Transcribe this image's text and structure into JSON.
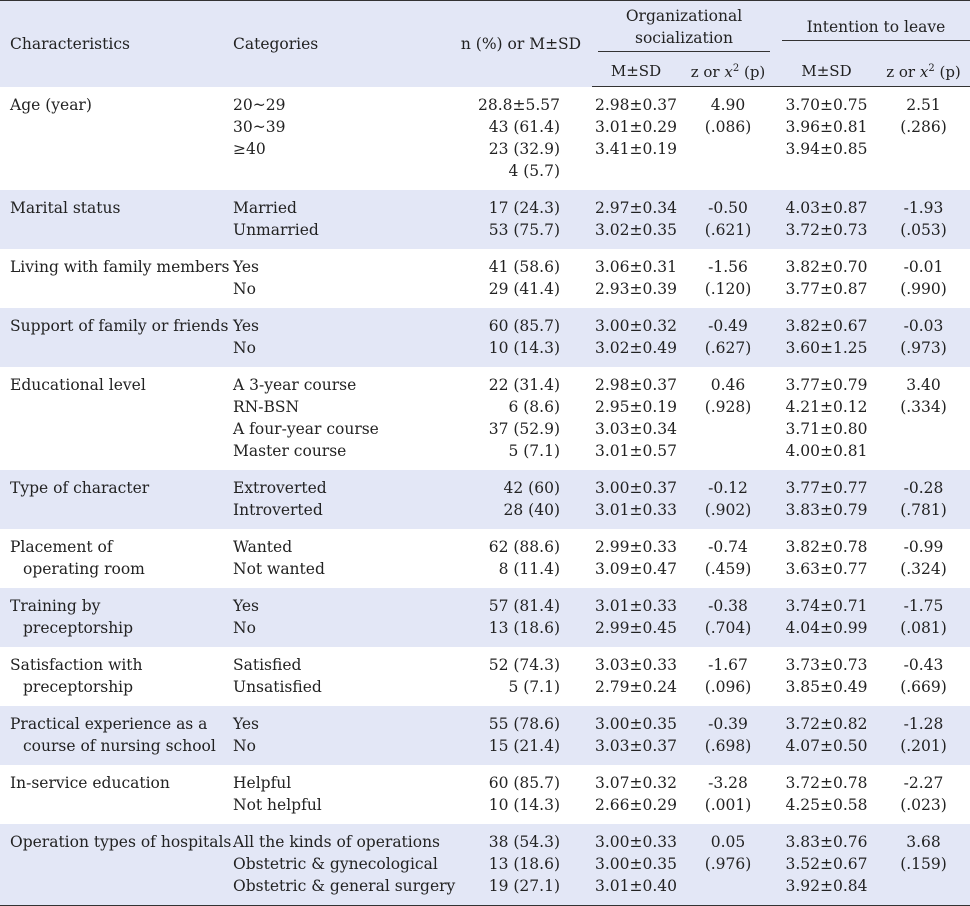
{
  "headers": {
    "characteristics": "Characteristics",
    "categories": "Categories",
    "n_percent": "n (%) or M±SD",
    "org_socialization": "Organizational socialization",
    "intention_to_leave": "Intention to leave",
    "msd": "M±SD",
    "zx_prefix": "z or ",
    "zx_var": "x",
    "zx_sup": "2",
    "zx_p": " (p)"
  },
  "rows": [
    {
      "char": [
        "Age (year)"
      ],
      "cats": [
        "20~29",
        "30~39",
        "≥40",
        ""
      ],
      "n": [
        "28.8±5.57",
        "43 (61.4)",
        "23 (32.9)",
        "4 (5.7)"
      ],
      "os_m": [
        "2.98±0.37",
        "3.01±0.29",
        "3.41±0.19"
      ],
      "os_z": [
        "4.90",
        "(.086)"
      ],
      "il_m": [
        "3.70±0.75",
        "3.96±0.81",
        "3.94±0.85"
      ],
      "il_z": [
        "2.51",
        "(.286)"
      ]
    },
    {
      "char": [
        "Marital status"
      ],
      "cats": [
        "Married",
        "Unmarried"
      ],
      "n": [
        "17 (24.3)",
        "53 (75.7)"
      ],
      "os_m": [
        "2.97±0.34",
        "3.02±0.35"
      ],
      "os_z": [
        "-0.50",
        "(.621)"
      ],
      "il_m": [
        "4.03±0.87",
        "3.72±0.73"
      ],
      "il_z": [
        "-1.93",
        "(.053)"
      ]
    },
    {
      "char": [
        "Living with family members"
      ],
      "cats": [
        "Yes",
        "No"
      ],
      "n": [
        "41 (58.6)",
        "29 (41.4)"
      ],
      "os_m": [
        "3.06±0.31",
        "2.93±0.39"
      ],
      "os_z": [
        "-1.56",
        "(.120)"
      ],
      "il_m": [
        "3.82±0.70",
        "3.77±0.87"
      ],
      "il_z": [
        "-0.01",
        "(.990)"
      ]
    },
    {
      "char": [
        "Support of family or friends"
      ],
      "cats": [
        "Yes",
        "No"
      ],
      "n": [
        "60 (85.7)",
        "10 (14.3)"
      ],
      "os_m": [
        "3.00±0.32",
        "3.02±0.49"
      ],
      "os_z": [
        "-0.49",
        "(.627)"
      ],
      "il_m": [
        "3.82±0.67",
        "3.60±1.25"
      ],
      "il_z": [
        "-0.03",
        "(.973)"
      ]
    },
    {
      "char": [
        "Educational level"
      ],
      "cats": [
        "A 3-year course",
        "RN-BSN",
        "A four-year course",
        "Master course"
      ],
      "n": [
        "22 (31.4)",
        "6 (8.6)",
        "37 (52.9)",
        "5 (7.1)"
      ],
      "os_m": [
        "2.98±0.37",
        "2.95±0.19",
        "3.03±0.34",
        "3.01±0.57"
      ],
      "os_z": [
        "0.46",
        "(.928)"
      ],
      "il_m": [
        "3.77±0.79",
        "4.21±0.12",
        "3.71±0.80",
        "4.00±0.81"
      ],
      "il_z": [
        "3.40",
        "(.334)"
      ]
    },
    {
      "char": [
        "Type of character"
      ],
      "cats": [
        "Extroverted",
        "Introverted"
      ],
      "n": [
        "42 (60)",
        "28 (40)"
      ],
      "os_m": [
        "3.00±0.37",
        "3.01±0.33"
      ],
      "os_z": [
        "-0.12",
        "(.902)"
      ],
      "il_m": [
        "3.77±0.77",
        "3.83±0.79"
      ],
      "il_z": [
        "-0.28",
        "(.781)"
      ]
    },
    {
      "char": [
        "Placement of",
        "operating room"
      ],
      "cats": [
        "Wanted",
        "Not wanted"
      ],
      "n": [
        "62 (88.6)",
        "8 (11.4)"
      ],
      "os_m": [
        "2.99±0.33",
        "3.09±0.47"
      ],
      "os_z": [
        "-0.74",
        "(.459)"
      ],
      "il_m": [
        "3.82±0.78",
        "3.63±0.77"
      ],
      "il_z": [
        "-0.99",
        "(.324)"
      ]
    },
    {
      "char": [
        "Training by",
        "preceptorship"
      ],
      "cats": [
        "Yes",
        "No"
      ],
      "n": [
        "57 (81.4)",
        "13 (18.6)"
      ],
      "os_m": [
        "3.01±0.33",
        "2.99±0.45"
      ],
      "os_z": [
        "-0.38",
        "(.704)"
      ],
      "il_m": [
        "3.74±0.71",
        "4.04±0.99"
      ],
      "il_z": [
        "-1.75",
        "(.081)"
      ]
    },
    {
      "char": [
        "Satisfaction with",
        "preceptorship"
      ],
      "cats": [
        "Satisfied",
        "Unsatisfied"
      ],
      "n": [
        "52 (74.3)",
        "5 (7.1)"
      ],
      "os_m": [
        "3.03±0.33",
        "2.79±0.24"
      ],
      "os_z": [
        "-1.67",
        "(.096)"
      ],
      "il_m": [
        "3.73±0.73",
        "3.85±0.49"
      ],
      "il_z": [
        "-0.43",
        "(.669)"
      ]
    },
    {
      "char": [
        "Practical experience as a",
        "course of nursing school"
      ],
      "cats": [
        "Yes",
        "No"
      ],
      "n": [
        "55 (78.6)",
        "15 (21.4)"
      ],
      "os_m": [
        "3.00±0.35",
        "3.03±0.37"
      ],
      "os_z": [
        "-0.39",
        "(.698)"
      ],
      "il_m": [
        "3.72±0.82",
        "4.07±0.50"
      ],
      "il_z": [
        "-1.28",
        "(.201)"
      ]
    },
    {
      "char": [
        "In-service education"
      ],
      "cats": [
        "Helpful",
        "Not helpful"
      ],
      "n": [
        "60 (85.7)",
        "10 (14.3)"
      ],
      "os_m": [
        "3.07±0.32",
        "2.66±0.29"
      ],
      "os_z": [
        "-3.28",
        "(.001)"
      ],
      "il_m": [
        "3.72±0.78",
        "4.25±0.58"
      ],
      "il_z": [
        "-2.27",
        "(.023)"
      ]
    },
    {
      "char": [
        "Operation types of hospitals"
      ],
      "cats": [
        "All the kinds of operations",
        "Obstetric & gynecological",
        "Obstetric & general surgery"
      ],
      "n": [
        "38 (54.3)",
        "13 (18.6)",
        "19 (27.1)"
      ],
      "os_m": [
        "3.00±0.33",
        "3.00±0.35",
        "3.01±0.40"
      ],
      "os_z": [
        "0.05",
        "(.976)"
      ],
      "il_m": [
        "3.83±0.76",
        "3.52±0.67",
        "3.92±0.84"
      ],
      "il_z": [
        "3.68",
        "(.159)"
      ]
    }
  ]
}
